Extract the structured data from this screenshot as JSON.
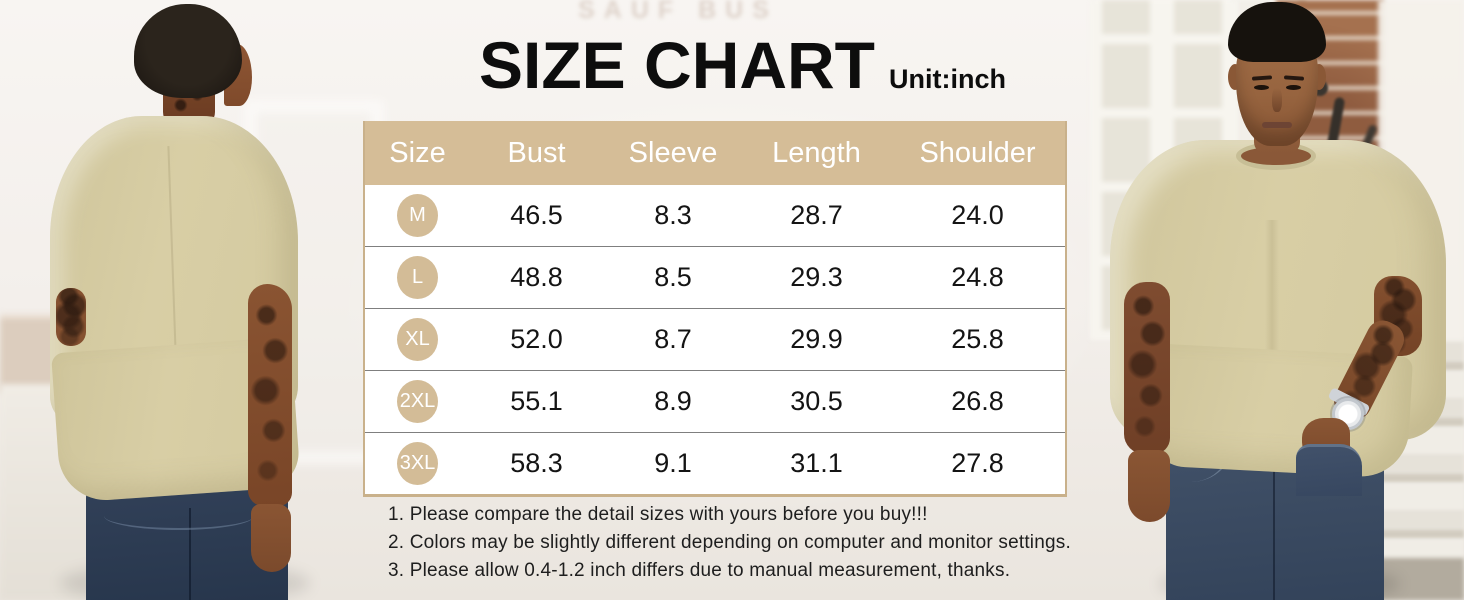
{
  "header": {
    "title": "SIZE CHART",
    "unit_label": "Unit:inch"
  },
  "chart_data": {
    "type": "table",
    "title": "SIZE CHART",
    "unit": "inch",
    "columns": [
      "Size",
      "Bust",
      "Sleeve",
      "Length",
      "Shoulder"
    ],
    "rows": [
      [
        "M",
        "46.5",
        "8.3",
        "28.7",
        "24.0"
      ],
      [
        "L",
        "48.8",
        "8.5",
        "29.3",
        "24.8"
      ],
      [
        "XL",
        "52.0",
        "8.7",
        "29.9",
        "25.8"
      ],
      [
        "2XL",
        "55.1",
        "8.9",
        "30.5",
        "26.8"
      ],
      [
        "3XL",
        "58.3",
        "9.1",
        "31.1",
        "27.8"
      ]
    ]
  },
  "notes": [
    "1. Please compare the detail sizes with yours before you buy!!!",
    "2. Colors may be slightly different depending on computer and monitor settings.",
    "3. Please allow 0.4-1.2 inch differs due to manual measurement, thanks."
  ],
  "background": {
    "sign_text": "SAUF BUS"
  },
  "colors": {
    "accent_tan": "#d5bd97",
    "badge_tan": "#d3bc97",
    "table_border_tan": "#c9b18b",
    "row_divider_gray": "#7f7f7f",
    "title_black": "#0d0d0d",
    "tshirt_khaki": "#d6cca3",
    "jeans_blue": "#35455c"
  }
}
